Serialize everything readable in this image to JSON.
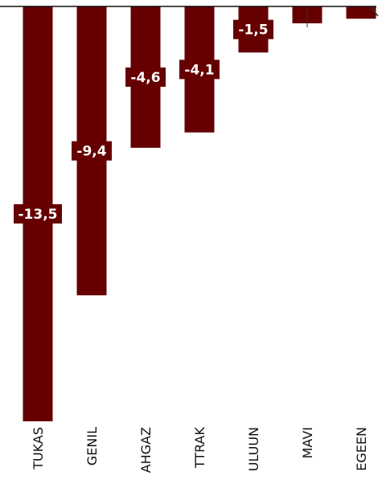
{
  "chart_data": {
    "type": "bar",
    "categories": [
      "TUKAS",
      "GENIL",
      "AHGAZ",
      "TTRAK",
      "ULUUN",
      "MAVI",
      "EGEEN"
    ],
    "values": [
      -13.5,
      -9.4,
      -4.6,
      -4.1,
      -1.5,
      -0.55,
      -0.4
    ],
    "data_labels": [
      "-13,5",
      "-9,4",
      "-4,6",
      "-4,1",
      "-1,5",
      "",
      ""
    ],
    "ylim": [
      -13.5,
      0
    ],
    "bar_color": "#660000",
    "label_color": "#ffffff",
    "grid": false,
    "legend": "none"
  }
}
